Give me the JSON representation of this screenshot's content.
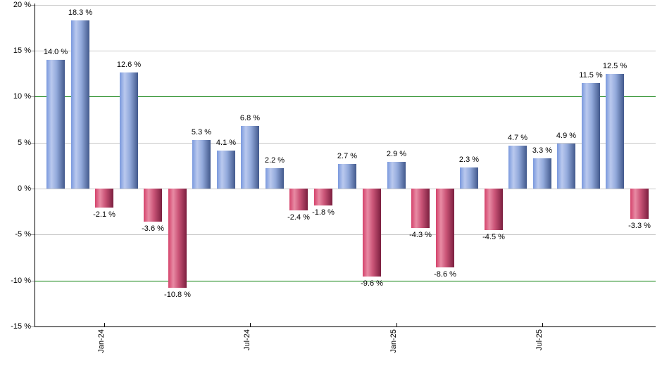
{
  "chart_data": {
    "type": "bar",
    "title": "",
    "xlabel": "",
    "ylabel": "",
    "ylim": [
      -15,
      20
    ],
    "grid": true,
    "legend": null,
    "value_label_suffix": " %",
    "yticks": [
      {
        "value": 20,
        "label": "20 %"
      },
      {
        "value": 15,
        "label": "15 %"
      },
      {
        "value": 10,
        "label": "10 %"
      },
      {
        "value": 5,
        "label": "5 %"
      },
      {
        "value": 0,
        "label": "0 %"
      },
      {
        "value": -5,
        "label": "-5 %"
      },
      {
        "value": -10,
        "label": "-10 %"
      },
      {
        "value": -15,
        "label": "-15 %"
      }
    ],
    "reference_line_values": [
      10,
      -10
    ],
    "xticks": [
      {
        "label": "Jan-24",
        "bar_index": 2
      },
      {
        "label": "Jul-24",
        "bar_index": 8
      },
      {
        "label": "Jan-25",
        "bar_index": 14
      },
      {
        "label": "Jul-25",
        "bar_index": 20
      }
    ],
    "bars": [
      {
        "value": 14.0,
        "label": "14.0 %"
      },
      {
        "value": 18.3,
        "label": "18.3 %"
      },
      {
        "value": -2.1,
        "label": "-2.1 %"
      },
      {
        "value": 12.6,
        "label": "12.6 %"
      },
      {
        "value": -3.6,
        "label": "-3.6 %"
      },
      {
        "value": -10.8,
        "label": "-10.8 %"
      },
      {
        "value": 5.3,
        "label": "5.3 %"
      },
      {
        "value": 4.1,
        "label": "4.1 %"
      },
      {
        "value": 6.8,
        "label": "6.8 %"
      },
      {
        "value": 2.2,
        "label": "2.2 %"
      },
      {
        "value": -2.4,
        "label": "-2.4 %"
      },
      {
        "value": -1.8,
        "label": "-1.8 %"
      },
      {
        "value": 2.7,
        "label": "2.7 %"
      },
      {
        "value": -9.6,
        "label": "-9.6 %"
      },
      {
        "value": 2.9,
        "label": "2.9 %"
      },
      {
        "value": -4.3,
        "label": "-4.3 %"
      },
      {
        "value": -8.6,
        "label": "-8.6 %"
      },
      {
        "value": 2.3,
        "label": "2.3 %"
      },
      {
        "value": -4.5,
        "label": "-4.5 %"
      },
      {
        "value": 4.7,
        "label": "4.7 %"
      },
      {
        "value": 3.3,
        "label": "3.3 %"
      },
      {
        "value": 4.9,
        "label": "4.9 %"
      },
      {
        "value": 11.5,
        "label": "11.5 %"
      },
      {
        "value": 12.5,
        "label": "12.5 %"
      },
      {
        "value": -3.3,
        "label": "-3.3 %"
      }
    ],
    "colors": {
      "positive_bar_edge_left": "#7a99dd",
      "positive_bar_light": "#bac9ee",
      "positive_bar_mid": "#93aadc",
      "positive_bar_edge_right": "#42598c",
      "negative_bar_edge_left": "#d4426b",
      "negative_bar_light": "#e88ba4",
      "negative_bar_mid": "#cb5578",
      "negative_bar_edge_right": "#7b1f3f",
      "gridline": "#c9c9c9",
      "reference_line": "#087d08",
      "axis": "#000000",
      "background": "#ffffff",
      "label_text": "#000000"
    }
  }
}
